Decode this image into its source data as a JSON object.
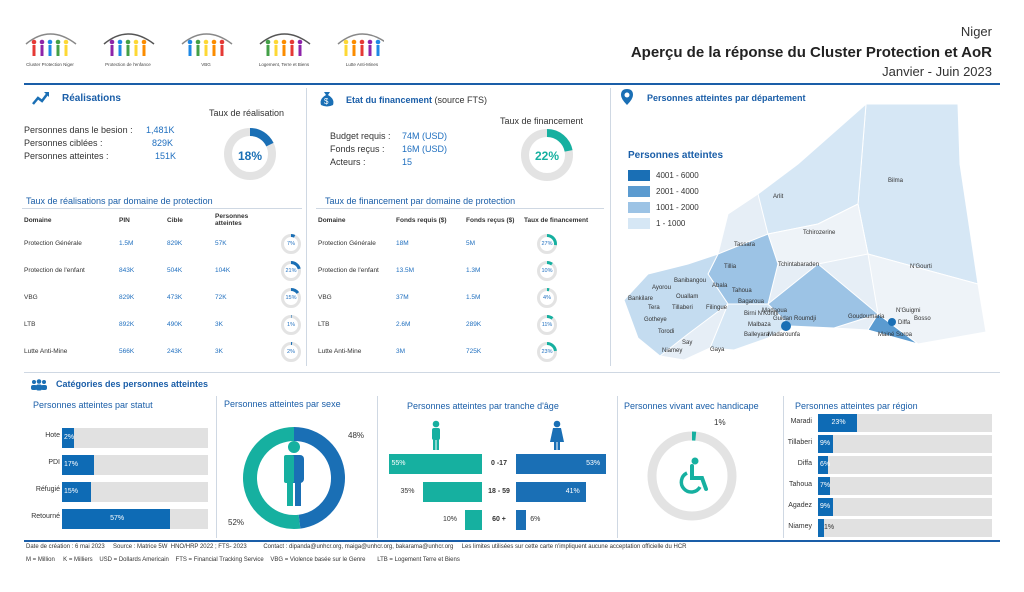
{
  "header": {
    "country": "Niger",
    "title": "Aperçu de la réponse du Cluster Protection et AoR",
    "period": "Janvier - Juin 2023",
    "logos": [
      {
        "label": "Cluster Protection Niger"
      },
      {
        "label": "Protection de l'enfance"
      },
      {
        "label": "VBG"
      },
      {
        "label": "Logement, Terre et Biens"
      },
      {
        "label": "Lutte Anti-Mines"
      }
    ]
  },
  "realisations": {
    "title": "Réalisations",
    "rate_label": "Taux de réalisation",
    "rate": "18%",
    "rate_value": 0.18,
    "rows": [
      {
        "label": "Personnes dans le besion :",
        "value": "1,481K"
      },
      {
        "label": "Personnes ciblées :",
        "value": "829K"
      },
      {
        "label": "Personnes atteintes :",
        "value": "151K"
      }
    ],
    "table_title": "Taux de réalisations par domaine de protection",
    "headers": [
      "Domaine",
      "PIN",
      "Cible",
      "Personnes atteintes"
    ],
    "table": [
      {
        "domain": "Protection Générale",
        "pin": "1.5M",
        "cible": "829K",
        "atteintes": "57K",
        "pct": "7%",
        "v": 0.07
      },
      {
        "domain": "Protection de l'enfant",
        "pin": "843K",
        "cible": "504K",
        "atteintes": "104K",
        "pct": "21%",
        "v": 0.21
      },
      {
        "domain": "VBG",
        "pin": "829K",
        "cible": "473K",
        "atteintes": "72K",
        "pct": "15%",
        "v": 0.15
      },
      {
        "domain": "LTB",
        "pin": "892K",
        "cible": "490K",
        "atteintes": "3K",
        "pct": "1%",
        "v": 0.01
      },
      {
        "domain": "Lutte Anti-Mine",
        "pin": "566K",
        "cible": "243K",
        "atteintes": "3K",
        "pct": "2%",
        "v": 0.02
      }
    ]
  },
  "financement": {
    "title": "Etat du financement",
    "source": "(source FTS)",
    "rate_label": "Taux de financement",
    "rate": "22%",
    "rate_value": 0.22,
    "rows": [
      {
        "label": "Budget requis :",
        "value": "74M (USD)"
      },
      {
        "label": "Fonds reçus :",
        "value": "16M (USD)"
      },
      {
        "label": "Acteurs :",
        "value": "15"
      }
    ],
    "table_title": "Taux de financement par domaine de protection",
    "headers": [
      "Domaine",
      "Fonds requis ($)",
      "Fonds reçus ($)",
      "Taux de financement"
    ],
    "table": [
      {
        "domain": "Protection Générale",
        "requis": "18M",
        "recus": "5M",
        "pct": "27%",
        "v": 0.27
      },
      {
        "domain": "Protection de l'enfant",
        "requis": "13.5M",
        "recus": "1.3M",
        "pct": "10%",
        "v": 0.1
      },
      {
        "domain": "VBG",
        "requis": "37M",
        "recus": "1.5M",
        "pct": "4%",
        "v": 0.04
      },
      {
        "domain": "LTB",
        "requis": "2.6M",
        "recus": "289K",
        "pct": "11%",
        "v": 0.11
      },
      {
        "domain": "Lutte Anti-Mine",
        "requis": "3M",
        "recus": "725K",
        "pct": "23%",
        "v": 0.23
      }
    ]
  },
  "map": {
    "title": "Personnes atteintes par département",
    "legend_title": "Personnes atteintes",
    "legend": [
      {
        "label": "4001 - 6000",
        "color": "#1a6fb5"
      },
      {
        "label": "2001 - 4000",
        "color": "#5b9bd0"
      },
      {
        "label": "1001 - 2000",
        "color": "#9cc3e5"
      },
      {
        "label": "1 - 1000",
        "color": "#d6e7f5"
      }
    ],
    "places": [
      "Bilma",
      "Arlit",
      "Tchirozerine",
      "N'Gourti",
      "Tassara",
      "Tillia",
      "Tchintabaraden",
      "Banibangou",
      "Ayorou",
      "Abala",
      "Tahoua",
      "Bankilare",
      "Ouallam",
      "Tera",
      "Tillaberi",
      "Filingue",
      "Bagaroua",
      "Madaoua",
      "Birni N'Konni",
      "Guidan Roumdji",
      "Goudoumaria",
      "N'Guigmi",
      "Bosso",
      "Diffa",
      "Gotheye",
      "Torodi",
      "Say",
      "Malbaza",
      "Mainé Soroa",
      "Niamey",
      "Balleyara",
      "Madarounfa",
      "Gaya"
    ]
  },
  "categories": {
    "title": "Catégories des personnes atteintes",
    "statut": {
      "title": "Personnes atteintes par statut",
      "items": [
        {
          "label": "Hote",
          "pct": "2%",
          "v": 0.02
        },
        {
          "label": "PDI",
          "pct": "17%",
          "v": 0.17
        },
        {
          "label": "Réfugié",
          "pct": "15%",
          "v": 0.15
        },
        {
          "label": "Retourné",
          "pct": "57%",
          "v": 0.57
        }
      ]
    },
    "sexe": {
      "title": "Personnes atteintes par sexe",
      "female_pct": "48%",
      "male_pct": "52%",
      "female": 0.48
    },
    "age": {
      "title": "Personnes atteintes par tranche d'âge",
      "rows": [
        {
          "label": "0 -17",
          "left": "55%",
          "lv": 0.55,
          "right": "53%",
          "rv": 0.53
        },
        {
          "label": "18 - 59",
          "left": "35%",
          "lv": 0.35,
          "right": "41%",
          "rv": 0.41
        },
        {
          "label": "60 +",
          "left": "10%",
          "lv": 0.1,
          "right": "6%",
          "rv": 0.06
        }
      ]
    },
    "handicap": {
      "title": "Personnes vivant avec handicape",
      "pct": "1%",
      "v": 0.01
    },
    "region": {
      "title": "Personnes atteintes par région",
      "items": [
        {
          "label": "Maradi",
          "pct": "23%",
          "v": 0.23
        },
        {
          "label": "Tillaberi",
          "pct": "9%",
          "v": 0.09
        },
        {
          "label": "Diffa",
          "pct": "6%",
          "v": 0.06
        },
        {
          "label": "Tahoua",
          "pct": "7%",
          "v": 0.07
        },
        {
          "label": "Agadez",
          "pct": "9%",
          "v": 0.09
        },
        {
          "label": "Niamey",
          "pct": "1%",
          "v": 0.01
        }
      ]
    }
  },
  "footer": {
    "line1": "Date de création : 6 mai 2023     Source : Matrice 5W  HNO/HRP 2022 ; FTS- 2023          Contact : dipanda@unhcr.org, maiga@unhcr.org, bakarama@unhcr.org     Les limites utilisées sur cette carte n'impliquent aucune acceptation officielle du HCR",
    "line2": "M = Million     K = Milliers    USD = Dollards Americain    FTS = Financial Tracking Service    VBG = Violence basée sur le Genre       LTB = Logement Terre et Biens"
  },
  "chart_data": [
    {
      "type": "table",
      "title": "Taux de réalisations par domaine de protection",
      "categories": [
        "Protection Générale",
        "Protection de l'enfant",
        "VBG",
        "LTB",
        "Lutte Anti-Mine"
      ],
      "series": [
        {
          "name": "PIN",
          "values": [
            "1.5M",
            "843K",
            "829K",
            "892K",
            "566K"
          ]
        },
        {
          "name": "Cible",
          "values": [
            "829K",
            "504K",
            "473K",
            "490K",
            "243K"
          ]
        },
        {
          "name": "Personnes atteintes",
          "values": [
            "57K",
            "104K",
            "72K",
            "3K",
            "3K"
          ]
        }
      ],
      "pct": [
        7,
        21,
        15,
        1,
        2
      ]
    },
    {
      "type": "table",
      "title": "Taux de financement par domaine de protection",
      "categories": [
        "Protection Générale",
        "Protection de l'enfant",
        "VBG",
        "LTB",
        "Lutte Anti-Mine"
      ],
      "series": [
        {
          "name": "Fonds requis ($)",
          "values": [
            "18M",
            "13.5M",
            "37M",
            "2.6M",
            "3M"
          ]
        },
        {
          "name": "Fonds reçus ($)",
          "values": [
            "5M",
            "1.3M",
            "1.5M",
            "289K",
            "725K"
          ]
        }
      ],
      "pct": [
        27,
        10,
        4,
        11,
        23
      ]
    },
    {
      "type": "bar",
      "title": "Personnes atteintes par statut",
      "categories": [
        "Hote",
        "PDI",
        "Réfugié",
        "Retourné"
      ],
      "values": [
        2,
        17,
        15,
        57
      ]
    },
    {
      "type": "pie",
      "title": "Personnes atteintes par sexe",
      "values": [
        48,
        52
      ]
    },
    {
      "type": "bar",
      "title": "Personnes atteintes par tranche d'âge",
      "categories": [
        "0 -17",
        "18 - 59",
        "60 +"
      ],
      "series": [
        {
          "values": [
            55,
            35,
            10
          ]
        },
        {
          "values": [
            53,
            41,
            6
          ]
        }
      ]
    },
    {
      "type": "pie",
      "title": "Personnes vivant avec handicape",
      "values": [
        1
      ]
    },
    {
      "type": "bar",
      "title": "Personnes atteintes par région",
      "categories": [
        "Maradi",
        "Tillaberi",
        "Diffa",
        "Tahoua",
        "Agadez",
        "Niamey"
      ],
      "values": [
        23,
        9,
        6,
        7,
        9,
        1
      ]
    }
  ]
}
